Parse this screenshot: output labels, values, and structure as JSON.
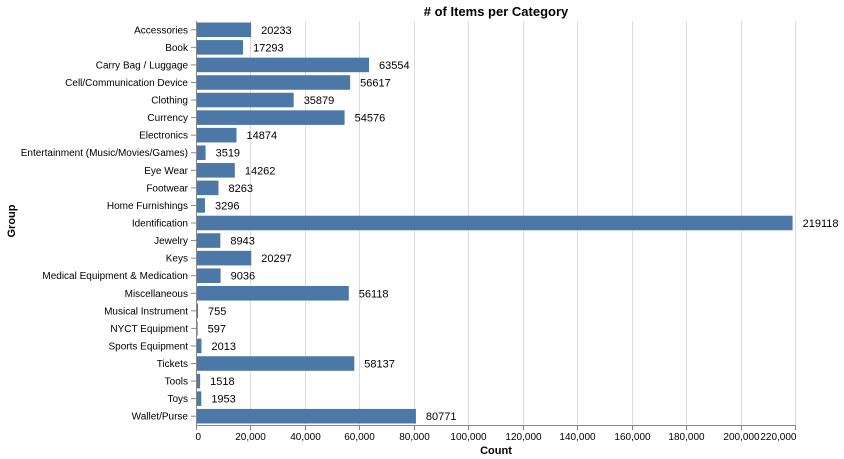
{
  "chart_data": {
    "type": "bar",
    "orientation": "horizontal",
    "title": "# of Items per Category",
    "xlabel": "Count",
    "ylabel": "Group",
    "xlim": [
      0,
      220000
    ],
    "x_ticks": [
      0,
      20000,
      40000,
      60000,
      80000,
      100000,
      120000,
      140000,
      160000,
      180000,
      200000,
      220000
    ],
    "x_tick_labels": [
      "0",
      "20,000",
      "40,000",
      "60,000",
      "80,000",
      "100,000",
      "120,000",
      "140,000",
      "160,000",
      "180,000",
      "200,000",
      "220,000"
    ],
    "grid": true,
    "bar_color": "#4c78a8",
    "categories": [
      "Accessories",
      "Book",
      "Carry Bag / Luggage",
      "Cell/Communication Device",
      "Clothing",
      "Currency",
      "Electronics",
      "Entertainment (Music/Movies/Games)",
      "Eye Wear",
      "Footwear",
      "Home Furnishings",
      "Identification",
      "Jewelry",
      "Keys",
      "Medical Equipment & Medication",
      "Miscellaneous",
      "Musical Instrument",
      "NYCT Equipment",
      "Sports Equipment",
      "Tickets",
      "Tools",
      "Toys",
      "Wallet/Purse"
    ],
    "values": [
      20233,
      17293,
      63554,
      56617,
      35879,
      54576,
      14874,
      3519,
      14262,
      8263,
      3296,
      219118,
      8943,
      20297,
      9036,
      56118,
      755,
      597,
      2013,
      58137,
      1518,
      1953,
      80771
    ]
  }
}
